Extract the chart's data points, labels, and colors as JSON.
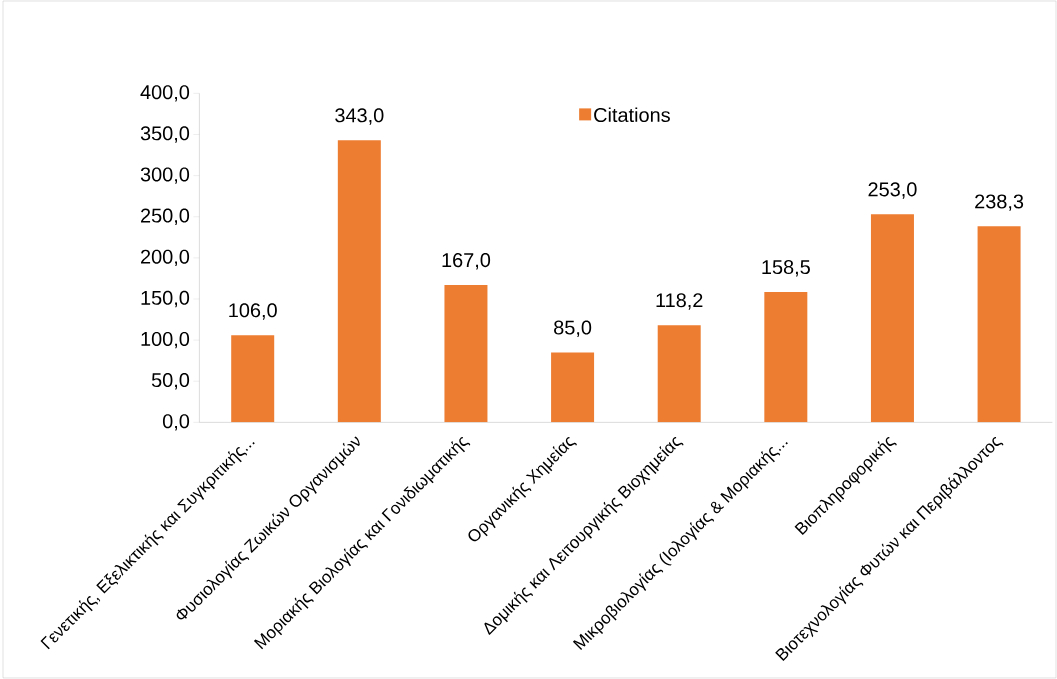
{
  "chart_data": {
    "type": "bar",
    "categories": [
      "Γενετικής, Εξελικτικής και Συγκριτικής...",
      "Φυσιολογίας Ζωικών Οργανισμών",
      "Μοριακής Βιολογίας και Γονιδιωματικής",
      "Οργανικής Χημείας",
      "Δομικής και Λειτουργικής Βιοχημείας",
      "Μικροβιολογίας (Ιολογίας & Μοριακής...",
      "Βιοπληροφορικής",
      "Βιοτεχνολογίας Φυτών και Περιβάλλοντος"
    ],
    "series": [
      {
        "name": "Citations",
        "color": "#ed7d31",
        "values": [
          106.0,
          343.0,
          167.0,
          85.0,
          118.2,
          158.5,
          253.0,
          238.3
        ],
        "value_labels": [
          "106,0",
          "343,0",
          "167,0",
          "85,0",
          "118,2",
          "158,5",
          "253,0",
          "238,3"
        ]
      }
    ],
    "ylim": [
      0,
      400
    ],
    "yticks": [
      {
        "value": 0,
        "label": "0,0"
      },
      {
        "value": 50,
        "label": "50,0"
      },
      {
        "value": 100,
        "label": "100,0"
      },
      {
        "value": 150,
        "label": "150,0"
      },
      {
        "value": 200,
        "label": "200,0"
      },
      {
        "value": 250,
        "label": "250,0"
      },
      {
        "value": 300,
        "label": "300,0"
      },
      {
        "value": 350,
        "label": "350,0"
      },
      {
        "value": 400,
        "label": "400,0"
      }
    ],
    "legend": "top",
    "grid": false
  }
}
